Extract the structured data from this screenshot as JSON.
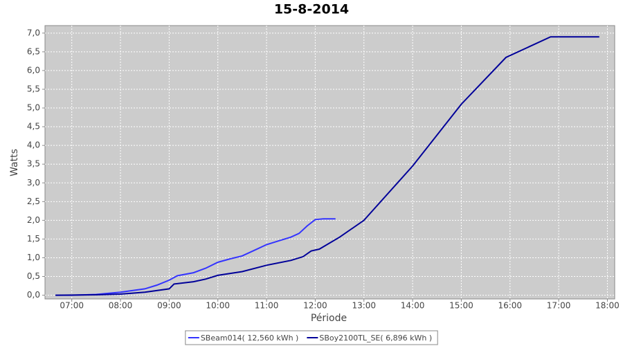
{
  "chart_data": {
    "type": "line",
    "title": "15-8-2014",
    "x_label": "Période",
    "y_label": "Watts",
    "xlim": [
      "06:27",
      "18:09"
    ],
    "xticks": [
      "07:00",
      "08:00",
      "09:00",
      "10:00",
      "11:00",
      "12:00",
      "13:00",
      "14:00",
      "15:00",
      "16:00",
      "17:00",
      "18:00"
    ],
    "ylim": [
      -0.1,
      7.2
    ],
    "yticks": [
      {
        "value": 0,
        "label": "0,0"
      },
      {
        "value": 0.5,
        "label": "0,5"
      },
      {
        "value": 1,
        "label": "1,0"
      },
      {
        "value": 1.5,
        "label": "1,5"
      },
      {
        "value": 2,
        "label": "2,0"
      },
      {
        "value": 2.5,
        "label": "2,5"
      },
      {
        "value": 3,
        "label": "3,0"
      },
      {
        "value": 3.5,
        "label": "3,5"
      },
      {
        "value": 4,
        "label": "4,0"
      },
      {
        "value": 4.5,
        "label": "4,5"
      },
      {
        "value": 5,
        "label": "5,0"
      },
      {
        "value": 5.5,
        "label": "5,5"
      },
      {
        "value": 6,
        "label": "6,0"
      },
      {
        "value": 6.5,
        "label": "6,5"
      },
      {
        "value": 7,
        "label": "7,0"
      }
    ],
    "grid": true,
    "legend": "bottom",
    "background": "#cccccc",
    "series": [
      {
        "name": "SBeam014( 12,560 kWh )",
        "color": "#3333ff",
        "x": [
          "06:40",
          "07:00",
          "07:30",
          "08:00",
          "08:30",
          "08:45",
          "09:00",
          "09:10",
          "09:30",
          "09:45",
          "10:00",
          "10:15",
          "10:30",
          "10:45",
          "11:00",
          "11:15",
          "11:30",
          "11:40",
          "11:50",
          "12:00",
          "12:10",
          "12:25"
        ],
        "values": [
          0,
          0,
          0.02,
          0.08,
          0.17,
          0.27,
          0.4,
          0.52,
          0.6,
          0.72,
          0.88,
          0.97,
          1.05,
          1.2,
          1.35,
          1.45,
          1.55,
          1.65,
          1.85,
          2.02,
          2.04,
          2.04
        ]
      },
      {
        "name": "SBoy2100TL_SE( 6,896 kWh )",
        "color": "#000099",
        "x": [
          "06:40",
          "07:30",
          "08:00",
          "08:30",
          "09:00",
          "09:06",
          "09:30",
          "09:45",
          "10:00",
          "10:30",
          "11:00",
          "11:30",
          "11:45",
          "11:55",
          "12:05",
          "12:30",
          "13:00",
          "14:00",
          "15:00",
          "15:55",
          "16:50",
          "17:50"
        ],
        "values": [
          0,
          0.01,
          0.03,
          0.08,
          0.17,
          0.3,
          0.36,
          0.43,
          0.53,
          0.63,
          0.8,
          0.93,
          1.03,
          1.18,
          1.23,
          1.55,
          2.0,
          3.45,
          5.1,
          6.35,
          6.9,
          6.9
        ]
      }
    ]
  }
}
